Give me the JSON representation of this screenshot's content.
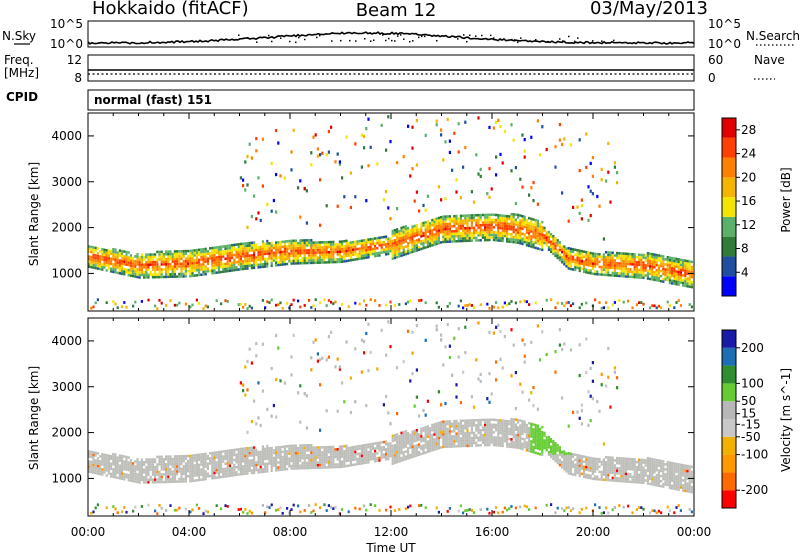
{
  "header": {
    "station": "Hokkaido (fitACF)",
    "beam": "Beam 12",
    "date": "03/May/2013"
  },
  "nsky_panel": {
    "left_label": "N.Sky",
    "right_label": "N.Search",
    "left_ticks": [
      "10^5",
      "10^0"
    ],
    "right_ticks": [
      "10^5",
      "10^0"
    ]
  },
  "freq_panel": {
    "left_label_top": "Freq.",
    "left_label_unit": "[MHz]",
    "left_ticks": [
      "12",
      "8"
    ],
    "right_label": "Nave",
    "right_ticks": [
      "60",
      "0"
    ]
  },
  "cpid": {
    "label": "CPID",
    "text": "normal (fast) 151"
  },
  "colors": {
    "power_scale": [
      "#0000ff",
      "#1f4fa0",
      "#2e7b3a",
      "#5bb06a",
      "#f5e400",
      "#f5b400",
      "#ff8000",
      "#ff4000",
      "#e00000"
    ],
    "velocity_scale": [
      "#ff0000",
      "#ff6a00",
      "#ff9900",
      "#f2b000",
      "#c8c8c8",
      "#b7b7b7",
      "#66cc33",
      "#2f8f2f",
      "#1c6fb5",
      "#1a1aa8"
    ],
    "ground_scatter": "#bdbdb9"
  },
  "chart_data": [
    {
      "type": "heatmap",
      "title": "",
      "xlabel": "",
      "ylabel": "Slant Range [km]",
      "xlim": [
        "00:00",
        "00:00"
      ],
      "ylim": [
        180,
        4500
      ],
      "x_ticks": [
        "00:00",
        "04:00",
        "08:00",
        "12:00",
        "16:00",
        "20:00",
        "00:00"
      ],
      "y_ticks": [
        1000,
        2000,
        3000,
        4000
      ],
      "colorbar": {
        "label": "Power [dB]",
        "ticks": [
          28,
          24,
          20,
          16,
          12,
          8,
          4
        ],
        "range": [
          0,
          30
        ]
      },
      "echo_band_center_km": [
        {
          "t": "00:00",
          "range": 1350
        },
        {
          "t": "02:00",
          "range": 1150
        },
        {
          "t": "04:00",
          "range": 1200
        },
        {
          "t": "06:00",
          "range": 1350
        },
        {
          "t": "08:00",
          "range": 1450
        },
        {
          "t": "10:00",
          "range": 1450
        },
        {
          "t": "12:00",
          "range": 1600
        },
        {
          "t": "14:00",
          "range": 1950
        },
        {
          "t": "16:00",
          "range": 2000
        },
        {
          "t": "17:00",
          "range": 1950
        },
        {
          "t": "18:00",
          "range": 1800
        },
        {
          "t": "19:00",
          "range": 1300
        },
        {
          "t": "20:00",
          "range": 1200
        },
        {
          "t": "22:00",
          "range": 1150
        },
        {
          "t": "00:00",
          "range": 950
        }
      ]
    },
    {
      "type": "heatmap",
      "title": "",
      "xlabel": "Time UT",
      "ylabel": "Slant Range [km]",
      "xlim": [
        "00:00",
        "00:00"
      ],
      "ylim": [
        180,
        4500
      ],
      "x_ticks": [
        "00:00",
        "04:00",
        "08:00",
        "12:00",
        "16:00",
        "20:00",
        "00:00"
      ],
      "y_ticks": [
        1000,
        2000,
        3000,
        4000
      ],
      "colorbar": {
        "label": "Velocity [m s^-1]",
        "ticks": [
          200,
          100,
          50,
          15,
          -15,
          -50,
          -100,
          -200
        ],
        "range": [
          -250,
          250
        ]
      }
    }
  ]
}
